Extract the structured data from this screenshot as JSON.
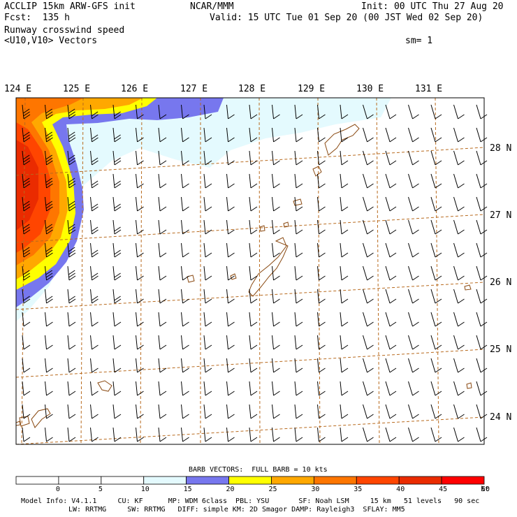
{
  "header": {
    "model": "ACCLIP 15km ARW-GFS init",
    "forecast": "Fcst:  135 h",
    "org": "NCAR/MMM",
    "init": "Init: 00 UTC Thu 27 Aug 20",
    "valid": "Valid: 15 UTC Tue 01 Sep 20 (00 JST Wed 02 Sep 20)",
    "field": "Runway crosswind speed",
    "vectors": "<U10,V10> Vectors",
    "smoothing": "sm= 1"
  },
  "map": {
    "lon_labels": [
      "124 E",
      "125 E",
      "126 E",
      "127 E",
      "128 E",
      "129 E",
      "130 E",
      "131 E"
    ],
    "lat_labels": [
      "28 N",
      "27 N",
      "26 N",
      "25 N",
      "24 N"
    ],
    "wind_barbs": "southerly to south-southwesterly, mostly 10-15 kt, up to 35-45 kt along the western edge"
  },
  "legend": {
    "title": "BARB VECTORS:  FULL BARB = 10 kts",
    "ticks": [
      "0",
      "5",
      "10",
      "15",
      "20",
      "25",
      "30",
      "35",
      "40",
      "45",
      "50"
    ],
    "unit": "kt",
    "colors": [
      "#ffffff",
      "#ffffff",
      "#ffffff",
      "#e4fafe",
      "#7777ee",
      "#ffff00",
      "#ffa800",
      "#fe7600",
      "#ff4500",
      "#ea2b00",
      "#ff0000"
    ]
  },
  "footer": {
    "line1": "Model Info: V4.1.1     CU: KF      MP: WDM 6class  PBL: YSU       SF: Noah LSM     15 km   51 levels   90 sec",
    "line2": "LW: RRTMG     SW: RRTMG   DIFF: simple KM: 2D Smagor DAMP: Rayleigh3  SFLAY: MM5"
  }
}
